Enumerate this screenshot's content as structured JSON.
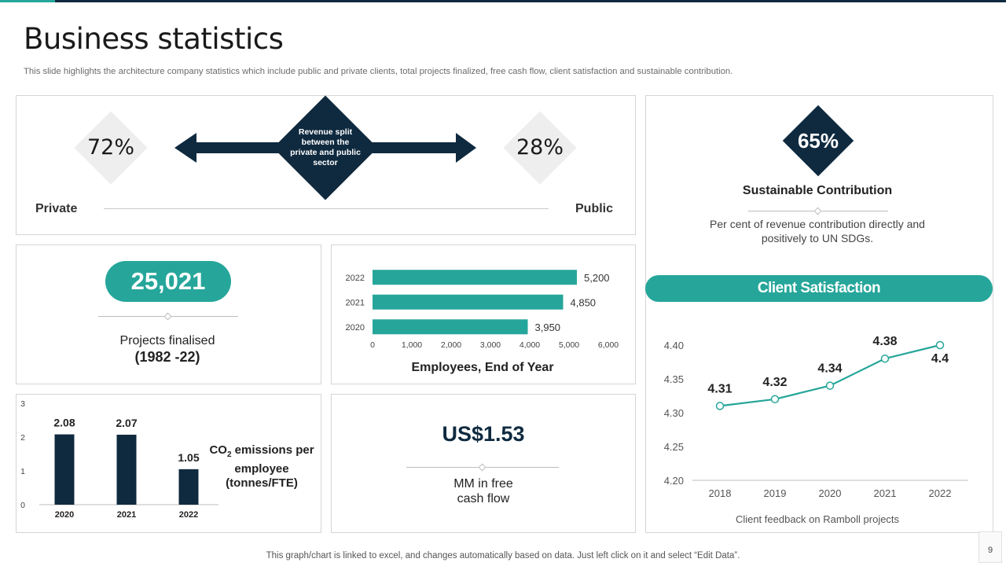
{
  "slide": {
    "title": "Business statistics",
    "subtitle": "This slide highlights the architecture company statistics which include public and private clients, total projects finalized, free cash flow, client satisfaction and sustainable contribution.",
    "footer": "This graph/chart is linked to excel,  and changes automatically based on data. Just left click on it and select “Edit Data”.",
    "page_number": "9"
  },
  "revenue_split": {
    "private_pct": "72%",
    "public_pct": "28%",
    "private_label": "Private",
    "public_label": "Public",
    "center_line1": "Revenue split",
    "center_line2": "between the",
    "center_line3": "private and public",
    "center_line4": "sector"
  },
  "sustainable": {
    "pct": "65%",
    "title": "Sustainable Contribution",
    "desc_line1": "Per cent of revenue contribution directly and",
    "desc_line2": "positively to UN SDGs."
  },
  "projects": {
    "value": "25,021",
    "label": "Projects finalised",
    "period": "(1982 -22)"
  },
  "cash_flow": {
    "value": "US$1.53",
    "label_line1": "MM in free",
    "label_line2": "cash flow"
  },
  "client_satisfaction": {
    "header": "Client Satisfaction"
  },
  "colors": {
    "navy": "#0f2a3f",
    "teal": "#26a69a",
    "light_gray": "#eeeeee"
  },
  "chart_data": [
    {
      "type": "bar",
      "orientation": "horizontal",
      "categories": [
        "2022",
        "2021",
        "2020"
      ],
      "values": [
        5200,
        4850,
        3950
      ],
      "value_labels": [
        "5,200",
        "4,850",
        "3,950"
      ],
      "xlabel": "Employees, End of Year",
      "xlim": [
        0,
        6000
      ],
      "xticks": [
        "0",
        "1,000",
        "2,000",
        "3,000",
        "4,000",
        "5,000",
        "6,000"
      ],
      "color": "#26a69a",
      "grid": false
    },
    {
      "type": "bar",
      "categories": [
        "2020",
        "2021",
        "2022"
      ],
      "values": [
        2.08,
        2.07,
        1.05
      ],
      "value_labels": [
        "2.08",
        "2.07",
        "1.05"
      ],
      "ylim": [
        0,
        3
      ],
      "yticks": [
        "0",
        "1",
        "2",
        "3"
      ],
      "label_line1_pre": "CO",
      "label_sub": "2",
      "label_line1_post": " emissions per",
      "label_line2": "employee",
      "label_line3": "(tonnes/FTE)",
      "color": "#0f2a3f",
      "grid": false
    },
    {
      "type": "line",
      "x": [
        "2018",
        "2019",
        "2020",
        "2021",
        "2022"
      ],
      "values": [
        4.31,
        4.32,
        4.34,
        4.38,
        4.4
      ],
      "value_labels": [
        "4.31",
        "4.32",
        "4.34",
        "4.38",
        "4.4"
      ],
      "ylim": [
        4.2,
        4.4
      ],
      "yticks": [
        "4.20",
        "4.25",
        "4.30",
        "4.35",
        "4.40"
      ],
      "xlabel": "Client feedback on Ramboll projects",
      "color": "#26a69a",
      "grid": false
    }
  ]
}
